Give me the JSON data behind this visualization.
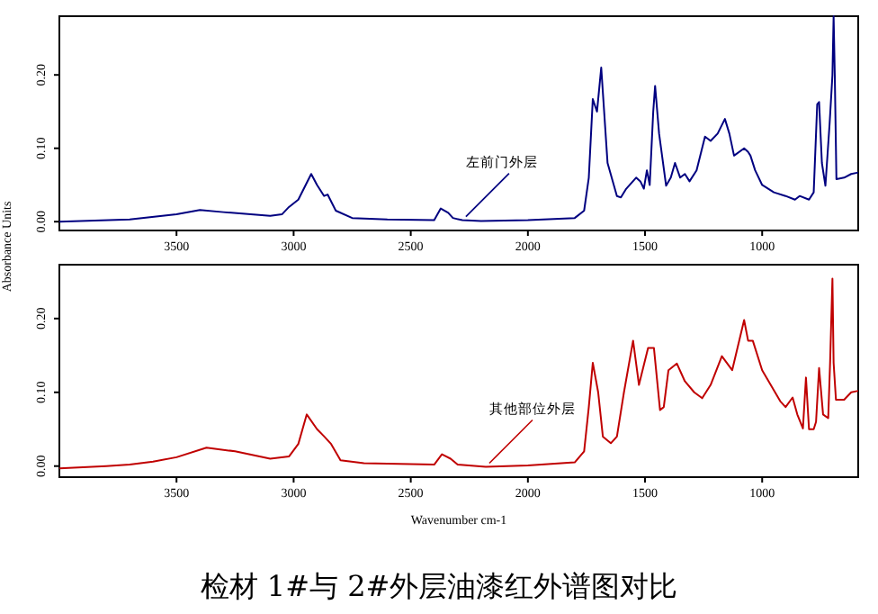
{
  "chart_data": [
    {
      "type": "line",
      "ylabel": "Absorbance Units",
      "xlim": [
        4000,
        590
      ],
      "ylim": [
        -0.012,
        0.28
      ],
      "xticks": [
        3500,
        3000,
        2500,
        2000,
        1500,
        1000
      ],
      "yticks": [
        {
          "value": 0,
          "label": "0.00"
        },
        {
          "value": 0.1,
          "label": "0.10"
        },
        {
          "value": 0.2,
          "label": "0.20"
        }
      ],
      "grid": false,
      "marker": "none",
      "line_style": "solid",
      "annotations": [
        {
          "text": "左前门外层",
          "x": 2280,
          "y": 0.002
        }
      ],
      "series": [
        {
          "color": "#000080",
          "x": [
            4000,
            3700,
            3500,
            3400,
            3300,
            3100,
            3050,
            3020,
            2980,
            2925,
            2900,
            2870,
            2855,
            2820,
            2750,
            2600,
            2400,
            2372,
            2340,
            2320,
            2280,
            2200,
            2000,
            1800,
            1760,
            1740,
            1723,
            1705,
            1687,
            1660,
            1620,
            1603,
            1580,
            1538,
            1520,
            1505,
            1492,
            1480,
            1465,
            1457,
            1440,
            1410,
            1390,
            1372,
            1350,
            1330,
            1310,
            1280,
            1244,
            1220,
            1190,
            1159,
            1140,
            1120,
            1077,
            1060,
            1050,
            1030,
            1000,
            950,
            900,
            860,
            840,
            800,
            780,
            765,
            757,
            745,
            730,
            712,
            700,
            695,
            690,
            683,
            650,
            620,
            590
          ],
          "values": [
            0,
            0.003,
            0.01,
            0.016,
            0.013,
            0.008,
            0.01,
            0.02,
            0.03,
            0.065,
            0.05,
            0.035,
            0.037,
            0.015,
            0.005,
            0.003,
            0.002,
            0.018,
            0.012,
            0.005,
            0.002,
            0.001,
            0.002,
            0.005,
            0.015,
            0.06,
            0.167,
            0.15,
            0.21,
            0.08,
            0.035,
            0.033,
            0.045,
            0.06,
            0.055,
            0.045,
            0.07,
            0.05,
            0.15,
            0.185,
            0.12,
            0.049,
            0.06,
            0.08,
            0.06,
            0.065,
            0.055,
            0.07,
            0.116,
            0.11,
            0.12,
            0.14,
            0.12,
            0.09,
            0.1,
            0.095,
            0.09,
            0.07,
            0.05,
            0.04,
            0.035,
            0.03,
            0.035,
            0.03,
            0.04,
            0.16,
            0.163,
            0.08,
            0.049,
            0.134,
            0.2,
            0.28,
            0.2,
            0.058,
            0.06,
            0.065,
            0.067
          ]
        }
      ]
    },
    {
      "type": "line",
      "xlabel": "Wavenumber cm-1",
      "xlim": [
        4000,
        590
      ],
      "ylim": [
        -0.015,
        0.273
      ],
      "xticks": [
        3500,
        3000,
        2500,
        2000,
        1500,
        1000
      ],
      "yticks": [
        {
          "value": 0,
          "label": "0.00"
        },
        {
          "value": 0.1,
          "label": "0.10"
        },
        {
          "value": 0.2,
          "label": "0.20"
        }
      ],
      "grid": false,
      "marker": "none",
      "line_style": "solid",
      "annotations": [
        {
          "text": "其他部位外层",
          "x": 2180,
          "y": -0.001
        },
        "检材 1#与 2#外层油漆红外谱图对比"
      ],
      "series": [
        {
          "color": "#c00000",
          "x": [
            4000,
            3800,
            3700,
            3600,
            3500,
            3372,
            3250,
            3100,
            3020,
            2980,
            2944,
            2900,
            2872,
            2840,
            2800,
            2700,
            2400,
            2367,
            2330,
            2300,
            2180,
            2000,
            1800,
            1760,
            1740,
            1723,
            1700,
            1680,
            1646,
            1620,
            1590,
            1551,
            1530,
            1526,
            1487,
            1462,
            1436,
            1420,
            1400,
            1364,
            1330,
            1290,
            1256,
            1220,
            1172,
            1128,
            1077,
            1060,
            1040,
            1000,
            923,
            900,
            870,
            850,
            826,
            813,
            800,
            780,
            770,
            757,
            740,
            718,
            710,
            700,
            695,
            685,
            650,
            620,
            590
          ],
          "values": [
            -0.003,
            0,
            0.002,
            0.006,
            0.012,
            0.025,
            0.02,
            0.01,
            0.013,
            0.03,
            0.07,
            0.05,
            0.041,
            0.03,
            0.008,
            0.004,
            0.002,
            0.016,
            0.01,
            0.002,
            -0.001,
            0.001,
            0.005,
            0.02,
            0.08,
            0.14,
            0.1,
            0.04,
            0.031,
            0.04,
            0.1,
            0.17,
            0.12,
            0.11,
            0.16,
            0.16,
            0.076,
            0.08,
            0.13,
            0.139,
            0.115,
            0.1,
            0.092,
            0.11,
            0.149,
            0.13,
            0.198,
            0.17,
            0.17,
            0.13,
            0.088,
            0.08,
            0.093,
            0.07,
            0.051,
            0.12,
            0.05,
            0.05,
            0.06,
            0.133,
            0.07,
            0.065,
            0.14,
            0.254,
            0.14,
            0.09,
            0.09,
            0.1,
            0.102
          ]
        }
      ]
    }
  ]
}
